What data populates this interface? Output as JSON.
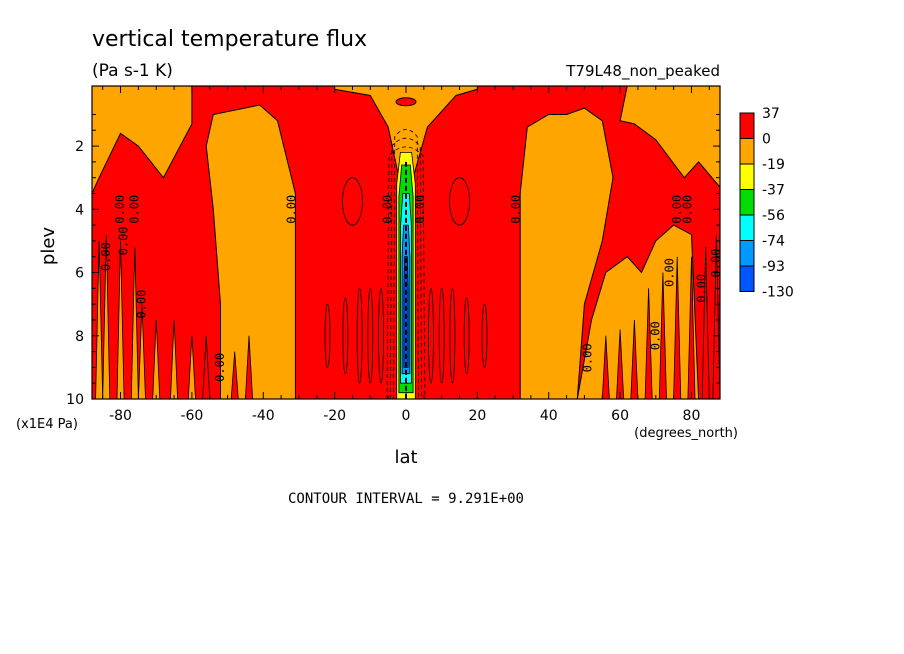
{
  "title": "vertical temperature flux",
  "units": "(Pa s-1 K)",
  "run_label": "T79L48_non_peaked",
  "footer": "CONTOUR INTERVAL = 9.291E+00",
  "colors": {
    "c37": "#ff0000",
    "c0": "#ffa500",
    "cm19": "#ffff00",
    "cm37": "#00dd00",
    "cm56": "#00ffff",
    "cm74": "#0099ff",
    "cm93": "#0055ff"
  },
  "chart_data": {
    "type": "heatmap",
    "xlabel": "lat",
    "xunits": "(degrees_north)",
    "ylabel": "plev",
    "yunits": "(x1E4 Pa)",
    "xlim": [
      -88,
      88
    ],
    "ylim": [
      10,
      0.1
    ],
    "xticks": [
      -80,
      -60,
      -40,
      -20,
      0,
      20,
      40,
      60,
      80
    ],
    "yticks": [
      2,
      4,
      6,
      8,
      10
    ],
    "colorbar": {
      "labels": [
        "37",
        "0",
        "-19",
        "-37",
        "-56",
        "-74",
        "-93",
        "-130"
      ],
      "colors": [
        "#ff0000",
        "#ffa500",
        "#ffff00",
        "#00dd00",
        "#00ffff",
        "#0099ff",
        "#0055ff"
      ]
    },
    "contour_labels": [
      {
        "text": "0.00",
        "lat": -83,
        "plev": 5.5
      },
      {
        "text": "0.00",
        "lat": -78,
        "plev": 5.0
      },
      {
        "text": "0.00",
        "lat": -79,
        "plev": 4.0
      },
      {
        "text": "0.00",
        "lat": -75,
        "plev": 4.0
      },
      {
        "text": "0.00",
        "lat": -73,
        "plev": 7.0
      },
      {
        "text": "0.00",
        "lat": -51,
        "plev": 9.0
      },
      {
        "text": "0.00",
        "lat": -31,
        "plev": 4.0
      },
      {
        "text": "0.00",
        "lat": -4,
        "plev": 4.0
      },
      {
        "text": "0.00",
        "lat": 5,
        "plev": 4.0
      },
      {
        "text": "0.00",
        "lat": 32,
        "plev": 4.0
      },
      {
        "text": "0.00",
        "lat": 52,
        "plev": 8.7
      },
      {
        "text": "0.00",
        "lat": 71,
        "plev": 8.0
      },
      {
        "text": "0.00",
        "lat": 75,
        "plev": 6.0
      },
      {
        "text": "0.00",
        "lat": 77,
        "plev": 4.0
      },
      {
        "text": "0.00",
        "lat": 80,
        "plev": 4.0
      },
      {
        "text": "0.00",
        "lat": 84,
        "plev": 6.5
      },
      {
        "text": "0.00",
        "lat": 88,
        "plev": 5.7
      }
    ]
  }
}
